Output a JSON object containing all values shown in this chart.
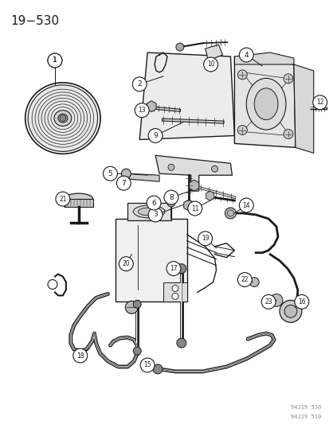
{
  "title": "19−530",
  "watermark": [
    "94J19 530",
    "94J19 510"
  ],
  "bg_color": "#ffffff",
  "line_color": "#1a1a1a",
  "label_color": "#1a1a1a",
  "title_fontsize": 11,
  "fig_width": 4.14,
  "fig_height": 5.33,
  "dpi": 100
}
